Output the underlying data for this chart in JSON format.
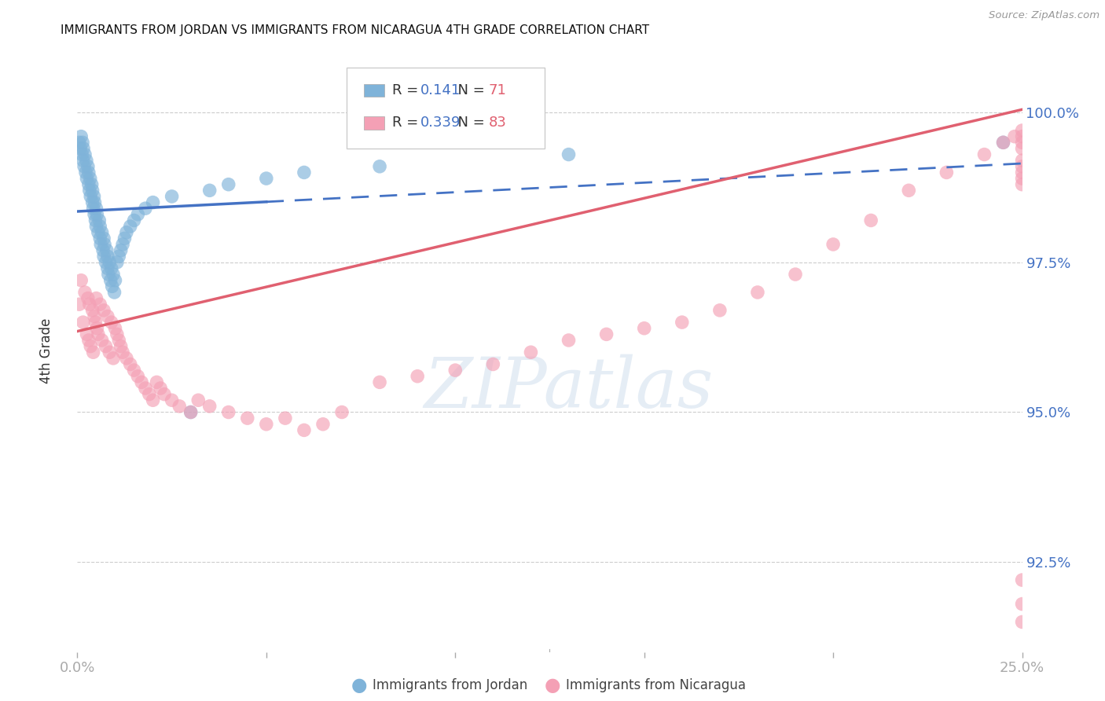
{
  "title": "IMMIGRANTS FROM JORDAN VS IMMIGRANTS FROM NICARAGUA 4TH GRADE CORRELATION CHART",
  "source": "Source: ZipAtlas.com",
  "ylabel": "4th Grade",
  "x_min": 0.0,
  "x_max": 25.0,
  "y_min": 91.0,
  "y_max": 101.0,
  "y_ticks": [
    92.5,
    95.0,
    97.5,
    100.0
  ],
  "jordan_R": "0.141",
  "jordan_N": "71",
  "nicaragua_R": "0.339",
  "nicaragua_N": "83",
  "jordan_color": "#7fb3d9",
  "nicaragua_color": "#f4a0b5",
  "jordan_line_color": "#4472C4",
  "nicaragua_line_color": "#e06070",
  "jordan_line_x0": 0.0,
  "jordan_line_y0": 98.35,
  "jordan_line_x1": 25.0,
  "jordan_line_y1": 99.15,
  "nicaragua_line_x0": 0.0,
  "nicaragua_line_y0": 96.35,
  "nicaragua_line_x1": 25.0,
  "nicaragua_line_y1": 100.05,
  "jordan_solid_end_x": 5.0,
  "watermark_text": "ZIPatlas",
  "jordan_scatter_x": [
    0.05,
    0.08,
    0.1,
    0.12,
    0.14,
    0.15,
    0.16,
    0.18,
    0.2,
    0.22,
    0.24,
    0.25,
    0.28,
    0.3,
    0.3,
    0.32,
    0.34,
    0.35,
    0.38,
    0.4,
    0.4,
    0.42,
    0.44,
    0.45,
    0.46,
    0.48,
    0.5,
    0.5,
    0.52,
    0.55,
    0.58,
    0.6,
    0.6,
    0.62,
    0.65,
    0.68,
    0.7,
    0.7,
    0.72,
    0.75,
    0.78,
    0.8,
    0.8,
    0.82,
    0.85,
    0.88,
    0.9,
    0.92,
    0.95,
    0.98,
    1.0,
    1.05,
    1.1,
    1.15,
    1.2,
    1.25,
    1.3,
    1.4,
    1.5,
    1.6,
    1.8,
    2.0,
    2.5,
    3.0,
    3.5,
    4.0,
    5.0,
    6.0,
    8.0,
    13.0,
    24.5
  ],
  "jordan_scatter_y": [
    99.5,
    99.4,
    99.6,
    99.3,
    99.5,
    99.2,
    99.4,
    99.1,
    99.3,
    99.0,
    99.2,
    98.9,
    99.1,
    98.8,
    99.0,
    98.7,
    98.9,
    98.6,
    98.8,
    98.5,
    98.7,
    98.4,
    98.6,
    98.3,
    98.5,
    98.2,
    98.4,
    98.1,
    98.3,
    98.0,
    98.2,
    97.9,
    98.1,
    97.8,
    98.0,
    97.7,
    97.9,
    97.6,
    97.8,
    97.5,
    97.7,
    97.4,
    97.6,
    97.3,
    97.5,
    97.2,
    97.4,
    97.1,
    97.3,
    97.0,
    97.2,
    97.5,
    97.6,
    97.7,
    97.8,
    97.9,
    98.0,
    98.1,
    98.2,
    98.3,
    98.4,
    98.5,
    98.6,
    95.0,
    98.7,
    98.8,
    98.9,
    99.0,
    99.1,
    99.3,
    99.5
  ],
  "nicaragua_scatter_x": [
    0.05,
    0.1,
    0.15,
    0.2,
    0.25,
    0.28,
    0.3,
    0.32,
    0.35,
    0.4,
    0.42,
    0.45,
    0.48,
    0.5,
    0.52,
    0.55,
    0.6,
    0.65,
    0.7,
    0.75,
    0.8,
    0.85,
    0.9,
    0.95,
    1.0,
    1.05,
    1.1,
    1.15,
    1.2,
    1.3,
    1.4,
    1.5,
    1.6,
    1.7,
    1.8,
    1.9,
    2.0,
    2.1,
    2.2,
    2.3,
    2.5,
    2.7,
    3.0,
    3.2,
    3.5,
    4.0,
    4.5,
    5.0,
    5.5,
    6.0,
    6.5,
    7.0,
    8.0,
    9.0,
    10.0,
    11.0,
    12.0,
    13.0,
    14.0,
    15.0,
    16.0,
    17.0,
    18.0,
    19.0,
    20.0,
    21.0,
    22.0,
    23.0,
    24.0,
    24.5,
    24.8,
    25.0,
    25.0,
    25.0,
    25.0,
    25.0,
    25.0,
    25.0,
    25.0,
    25.0,
    25.0,
    25.0,
    25.0
  ],
  "nicaragua_scatter_y": [
    96.8,
    97.2,
    96.5,
    97.0,
    96.3,
    96.9,
    96.2,
    96.8,
    96.1,
    96.7,
    96.0,
    96.6,
    96.5,
    96.9,
    96.4,
    96.3,
    96.8,
    96.2,
    96.7,
    96.1,
    96.6,
    96.0,
    96.5,
    95.9,
    96.4,
    96.3,
    96.2,
    96.1,
    96.0,
    95.9,
    95.8,
    95.7,
    95.6,
    95.5,
    95.4,
    95.3,
    95.2,
    95.5,
    95.4,
    95.3,
    95.2,
    95.1,
    95.0,
    95.2,
    95.1,
    95.0,
    94.9,
    94.8,
    94.9,
    94.7,
    94.8,
    95.0,
    95.5,
    95.6,
    95.7,
    95.8,
    96.0,
    96.2,
    96.3,
    96.4,
    96.5,
    96.7,
    97.0,
    97.3,
    97.8,
    98.2,
    98.7,
    99.0,
    99.3,
    99.5,
    99.6,
    99.7,
    99.6,
    99.5,
    99.4,
    91.8,
    92.2,
    91.5,
    99.2,
    99.1,
    99.0,
    98.9,
    98.8
  ]
}
